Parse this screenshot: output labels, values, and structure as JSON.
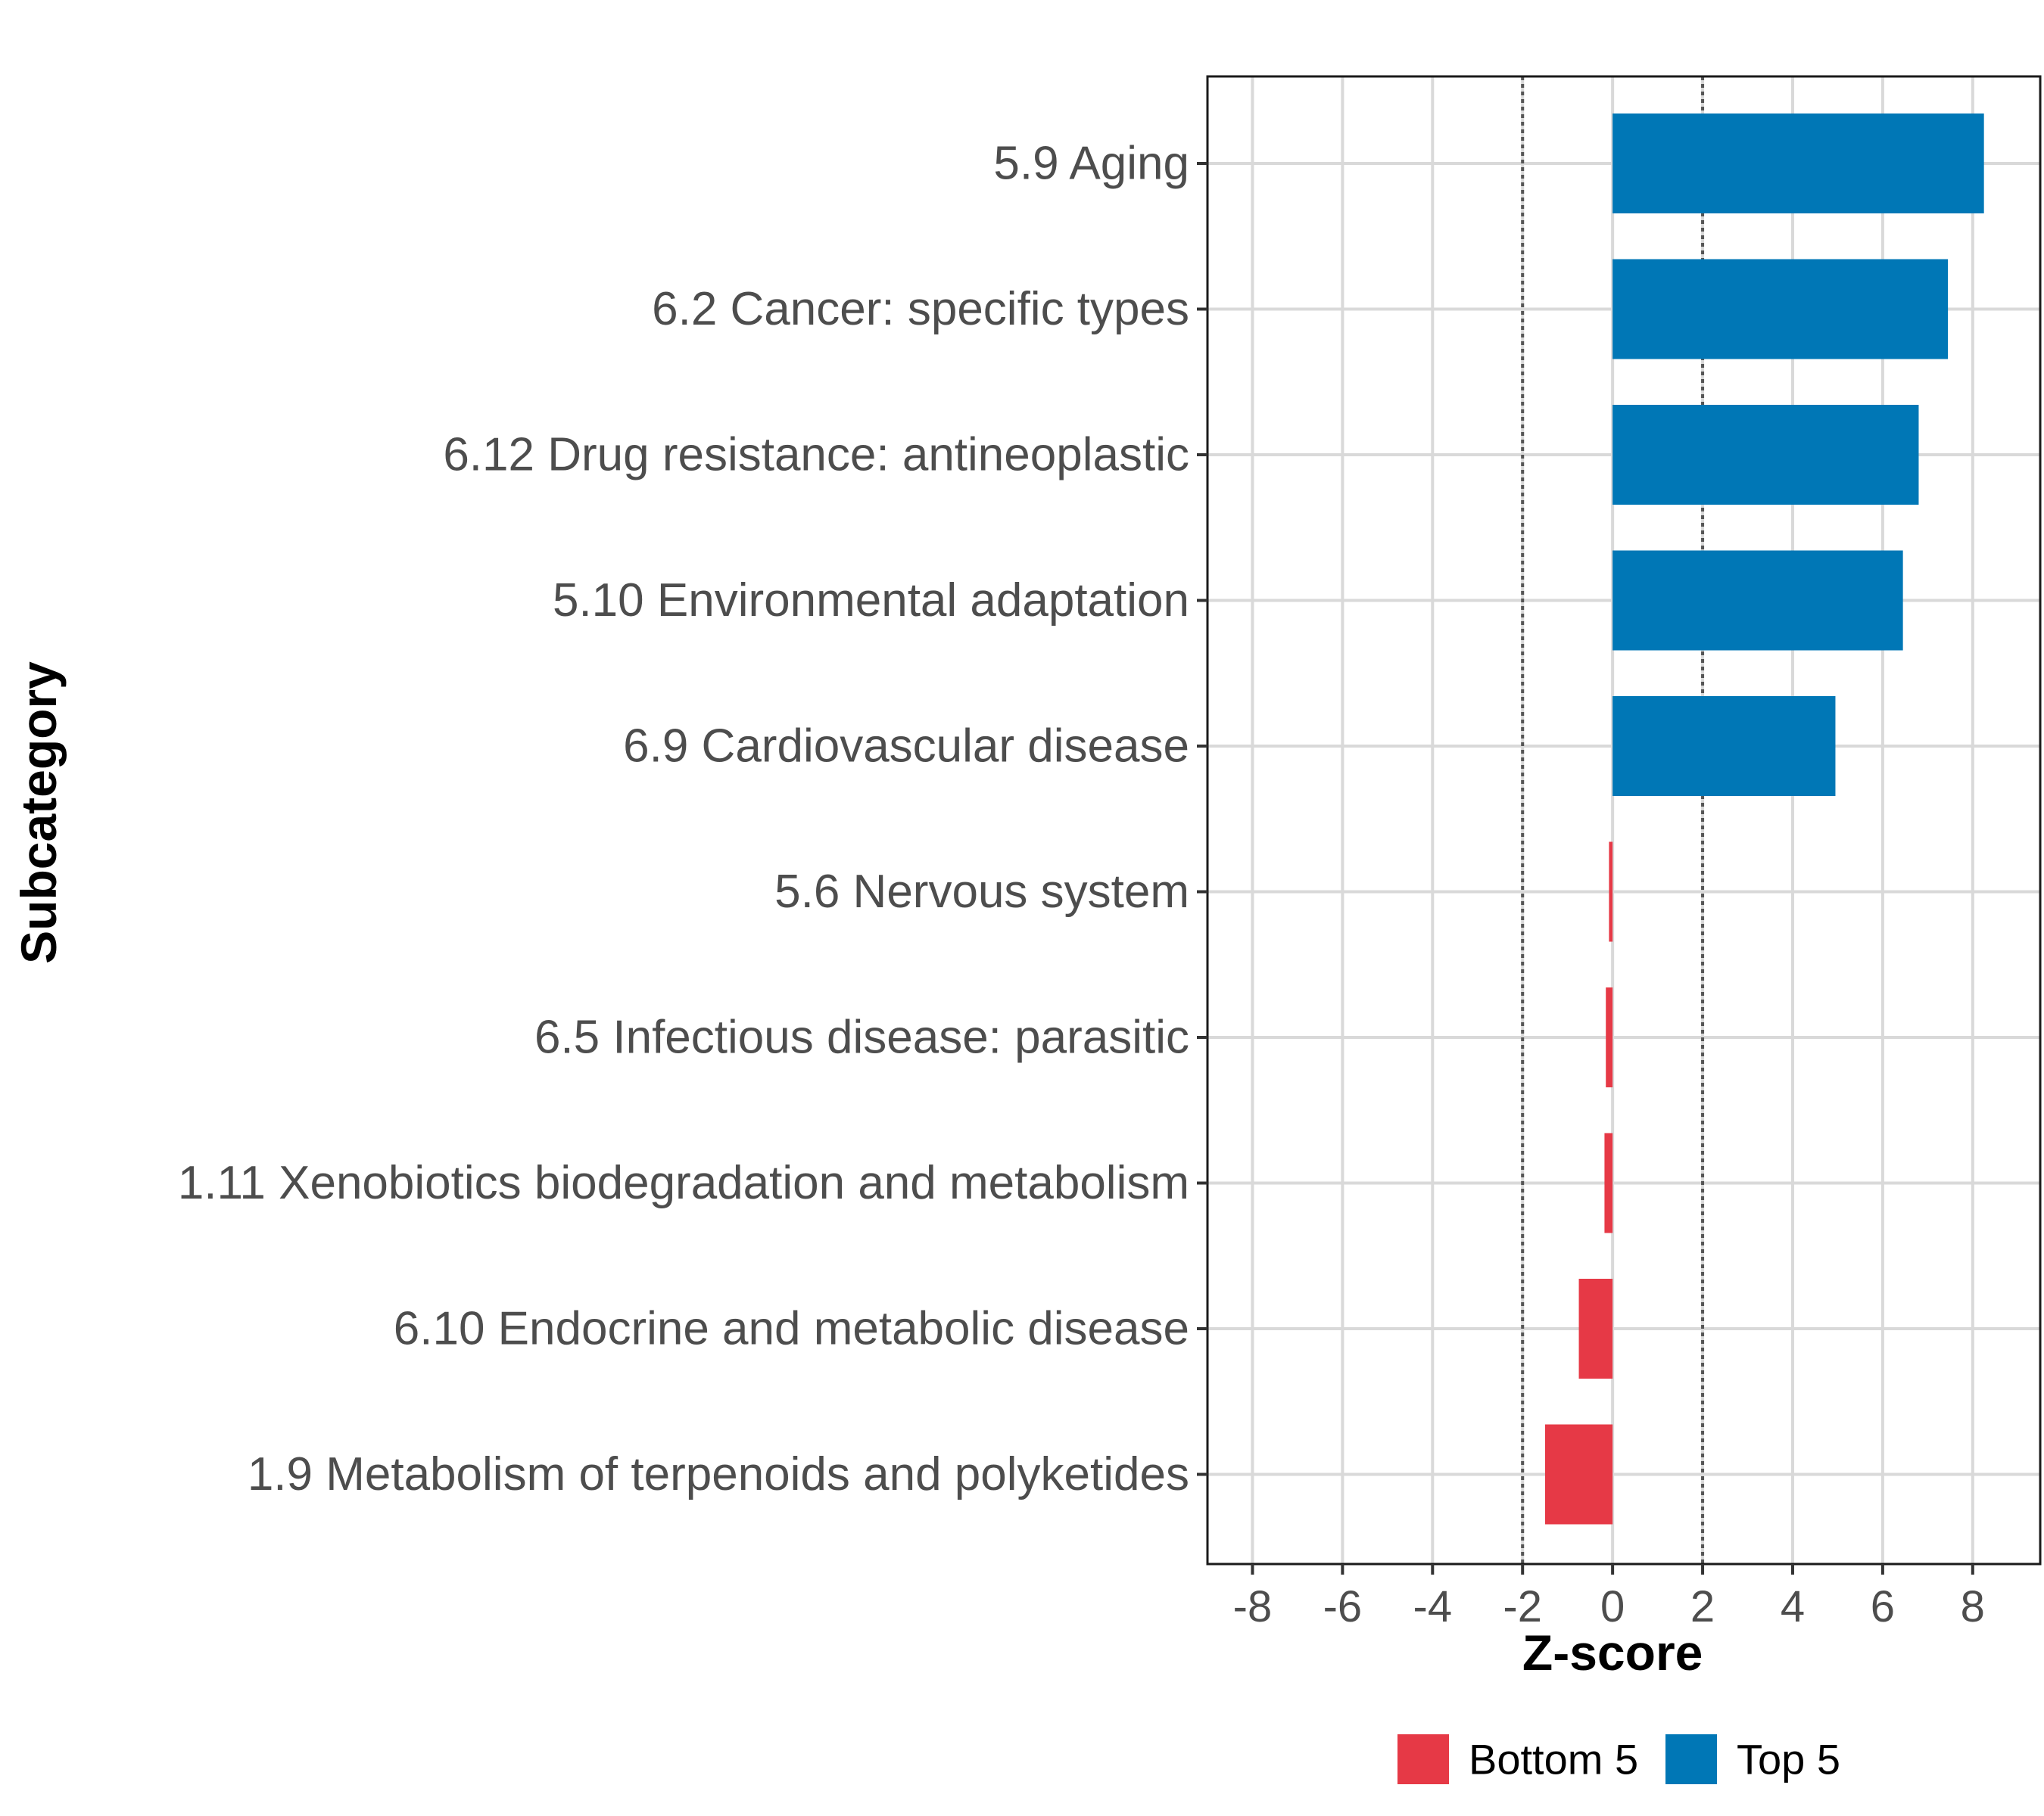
{
  "chart_data": {
    "type": "bar",
    "orientation": "horizontal",
    "categories": [
      "5.9 Aging",
      "6.2 Cancer: specific types",
      "6.12 Drug resistance: antineoplastic",
      "5.10 Environmental adaptation",
      "6.9 Cardiovascular disease",
      "5.6 Nervous system",
      "6.5 Infectious disease: parasitic",
      "1.11 Xenobiotics biodegradation and metabolism",
      "6.10 Endocrine and metabolic disease",
      "1.9 Metabolism of terpenoids and polyketides"
    ],
    "values": [
      8.25,
      7.45,
      6.8,
      6.45,
      4.95,
      -0.08,
      -0.15,
      -0.18,
      -0.75,
      -1.5
    ],
    "groups": [
      "Top 5",
      "Top 5",
      "Top 5",
      "Top 5",
      "Top 5",
      "Bottom 5",
      "Bottom 5",
      "Bottom 5",
      "Bottom 5",
      "Bottom 5"
    ],
    "xlabel": "Z-score",
    "ylabel": "Subcategory",
    "xlim": [
      -9,
      9.5
    ],
    "xticks": [
      -8,
      -6,
      -4,
      -2,
      0,
      2,
      4,
      6,
      8
    ],
    "xtick_labels": [
      "-8",
      "-6",
      "-4",
      "-2",
      "0",
      "2",
      "4",
      "6",
      "8"
    ],
    "reference_lines": [
      -2,
      2
    ],
    "grid": true,
    "legend": {
      "position": "bottom",
      "entries": [
        {
          "label": "Bottom 5",
          "color": "#e63946"
        },
        {
          "label": "Top 5",
          "color": "#0077b6"
        }
      ]
    }
  }
}
